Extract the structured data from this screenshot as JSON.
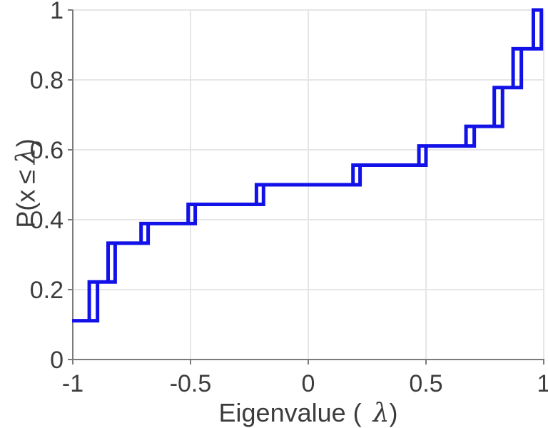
{
  "page": {
    "background": "#ffffff"
  },
  "axis_labels": {
    "x": {
      "prefix": "Eigenvalue (",
      "lambda": "λ",
      "suffix": ")"
    },
    "y": {
      "prefix": "P(x",
      "leq": "≤",
      "lambda": "λ",
      "suffix": ")"
    }
  },
  "chart_data": {
    "type": "line",
    "subtype": "empirical-cdf-stairs",
    "title": "",
    "xlabel": "Eigenvalue (λ)",
    "ylabel": "P(x ≤ λ)",
    "xlim": [
      -1,
      1
    ],
    "ylim": [
      0,
      1
    ],
    "x_ticks": [
      -1,
      -0.5,
      0,
      0.5,
      1
    ],
    "x_tick_labels": [
      "-1",
      "-0.5",
      "0",
      "0.5",
      "1"
    ],
    "y_ticks": [
      0,
      0.2,
      0.4,
      0.6,
      0.8,
      1
    ],
    "y_tick_labels": [
      "0",
      "0.2",
      "0.4",
      "0.6",
      "0.8",
      "1"
    ],
    "grid": true,
    "legend": null,
    "line_color": "#1212e8",
    "line_width": 5,
    "colors": {
      "grid": "#e6e6e6",
      "axis": "#7b7b7b",
      "tick_label": "#3c3c3c"
    },
    "start": {
      "x": -1.0,
      "level": 0.111
    },
    "steps": [
      {
        "x1": -0.93,
        "x2": -0.895,
        "from": 0.111,
        "to": 0.222
      },
      {
        "x1": -0.85,
        "x2": -0.82,
        "from": 0.222,
        "to": 0.333
      },
      {
        "x1": -0.71,
        "x2": -0.68,
        "from": 0.333,
        "to": 0.389
      },
      {
        "x1": -0.51,
        "x2": -0.48,
        "from": 0.389,
        "to": 0.444
      },
      {
        "x1": -0.22,
        "x2": -0.19,
        "from": 0.444,
        "to": 0.5
      },
      {
        "x1": 0.19,
        "x2": 0.22,
        "from": 0.5,
        "to": 0.556
      },
      {
        "x1": 0.47,
        "x2": 0.5,
        "from": 0.556,
        "to": 0.611
      },
      {
        "x1": 0.67,
        "x2": 0.705,
        "from": 0.611,
        "to": 0.667
      },
      {
        "x1": 0.79,
        "x2": 0.825,
        "from": 0.667,
        "to": 0.778
      },
      {
        "x1": 0.87,
        "x2": 0.905,
        "from": 0.778,
        "to": 0.889
      },
      {
        "x1": 0.956,
        "x2": 0.99,
        "from": 0.889,
        "to": 1.0
      }
    ]
  }
}
